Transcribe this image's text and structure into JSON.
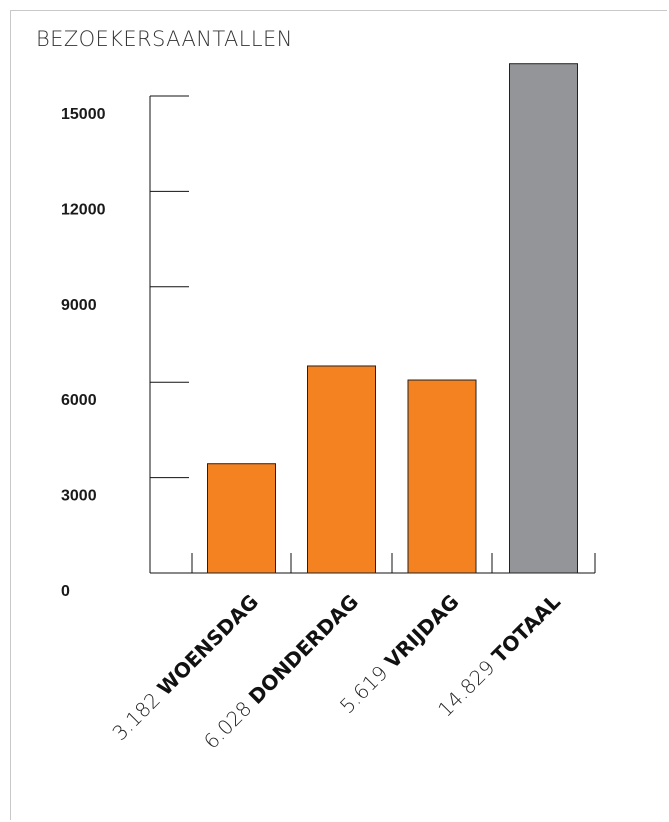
{
  "chart_data": {
    "type": "bar",
    "title": "BEZOEKERSAANTALLEN",
    "categories": [
      "WOENSDAG",
      "DONDERDAG",
      "VRIJDAG",
      "TOTAAL"
    ],
    "values": [
      3182,
      6028,
      5619,
      14829
    ],
    "value_labels": [
      "3.182",
      "6.028",
      "5.619",
      "14.829"
    ],
    "bar_colors": [
      "#f58220",
      "#f58220",
      "#f58220",
      "#939598"
    ],
    "yticks": [
      0,
      3000,
      6000,
      9000,
      12000,
      15000
    ],
    "ylim": [
      0,
      15000
    ],
    "grid": false,
    "xlabel": "",
    "ylabel": ""
  }
}
